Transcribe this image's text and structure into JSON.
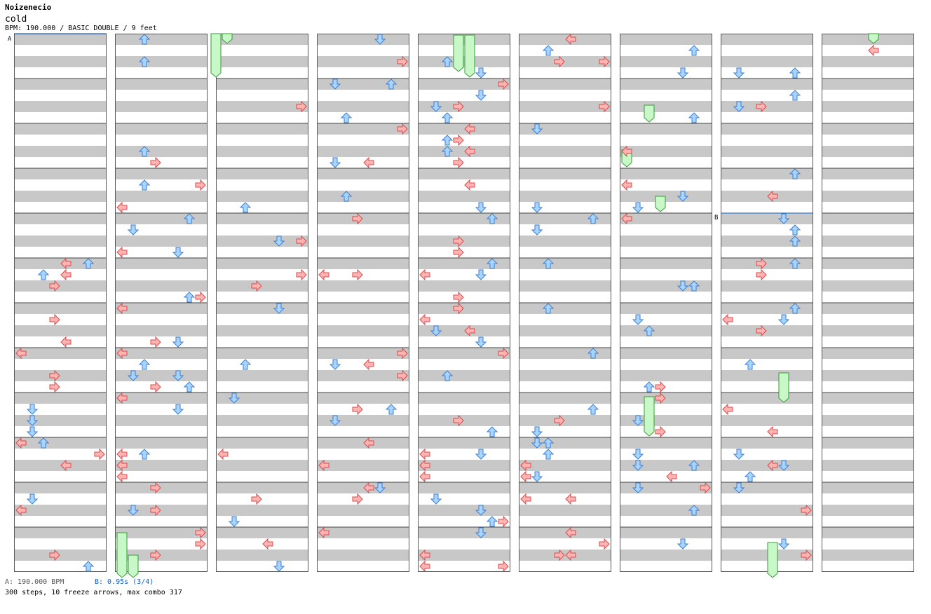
{
  "header": {
    "artist": "Noizenecio",
    "title": "cold",
    "info": "BPM: 190.000 / BASIC DOUBLE / 9 feet"
  },
  "markers": {
    "a_label": "A",
    "b_label": "B"
  },
  "footer": {
    "a_text": "A: 190.000 BPM",
    "b_text": "B: 0.95s (3/4)",
    "stats": "300 steps, 10 freeze arrows, max combo 317"
  },
  "colors": {
    "stripe": "#c8c8c8",
    "border": "#555555",
    "arrow_red": "#ffb4b4",
    "arrow_red_edge": "#d84a4a",
    "arrow_blue": "#a8d4ff",
    "arrow_blue_edge": "#3c80d0",
    "freeze_fill": "#c8f8c8",
    "freeze_edge": "#3a9a3a",
    "marker_line": "#1060c0"
  }
}
